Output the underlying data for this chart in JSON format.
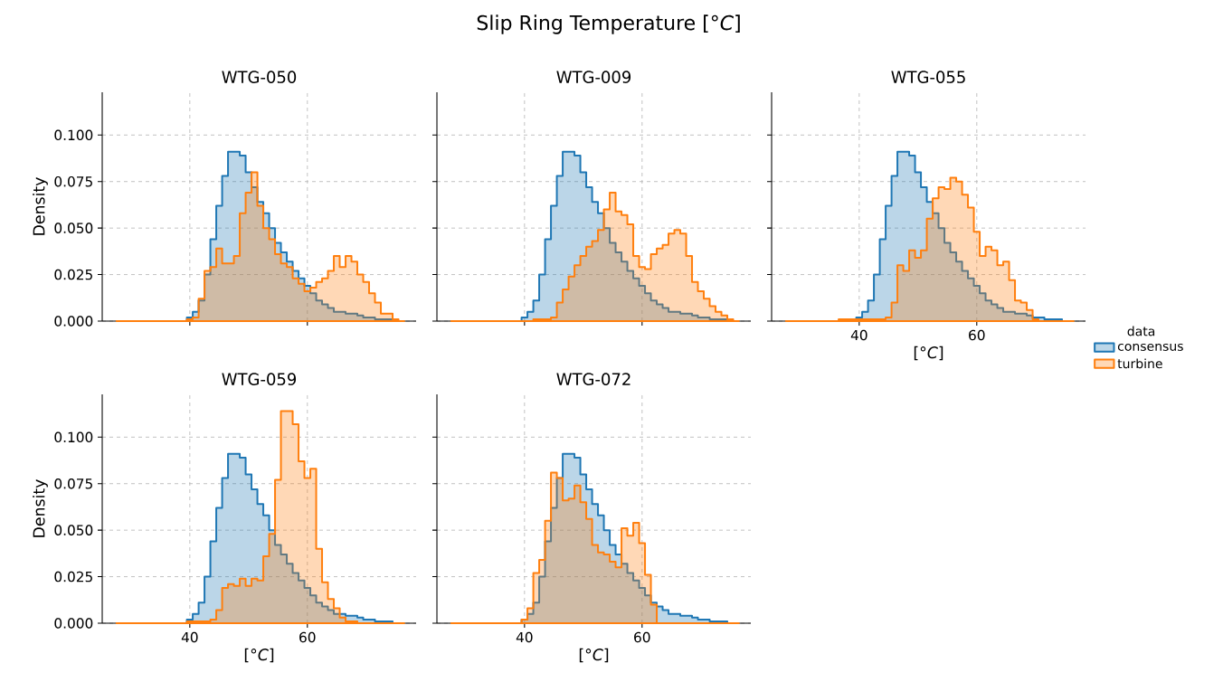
{
  "chart_data": [
    {
      "type": "histogram",
      "title": "WTG-050",
      "ylabel": "Density",
      "xlim": [
        25.1,
        78.5
      ],
      "ylim": [
        0,
        0.123
      ],
      "xticks": [
        40,
        60
      ],
      "yticks": [
        {
          "value": 0,
          "label": "0.000"
        },
        {
          "value": 0.025,
          "label": "0.025"
        },
        {
          "value": 0.05,
          "label": "0.050"
        },
        {
          "value": 0.075,
          "label": "0.075"
        },
        {
          "value": 0.1,
          "label": "0.100"
        }
      ],
      "grid": true,
      "tick_labels": "y",
      "bins": [
        27.5,
        28.5,
        29.5,
        30.5,
        31.5,
        32.5,
        33.5,
        34.5,
        35.5,
        36.5,
        37.5,
        38.5,
        39.5,
        40.5,
        41.5,
        42.5,
        43.5,
        44.5,
        45.5,
        46.5,
        47.5,
        48.5,
        49.5,
        50.5,
        51.5,
        52.5,
        53.5,
        54.5,
        55.5,
        56.5,
        57.5,
        58.5,
        59.5,
        60.5,
        61.5,
        62.5,
        63.5,
        64.5,
        65.5,
        66.5,
        67.5,
        68.5,
        69.5,
        70.5,
        71.5,
        72.5,
        73.5,
        74.5,
        75.5,
        76.5
      ],
      "series": [
        {
          "color": "#1f77b4",
          "values": [
            0,
            0,
            0,
            0,
            0,
            0,
            0,
            0,
            0,
            0,
            0,
            0,
            0.002,
            0.005,
            0.011,
            0.025,
            0.044,
            0.062,
            0.078,
            0.091,
            0.091,
            0.089,
            0.08,
            0.072,
            0.064,
            0.058,
            0.05,
            0.042,
            0.037,
            0.032,
            0.027,
            0.023,
            0.019,
            0.015,
            0.011,
            0.009,
            0.007,
            0.005,
            0.005,
            0.004,
            0.004,
            0.003,
            0.002,
            0.002,
            0.001,
            0.001,
            0.001,
            0,
            0
          ]
        },
        {
          "color": "#ff7f0e",
          "values": [
            0,
            0,
            0,
            0,
            0,
            0,
            0,
            0,
            0,
            0,
            0,
            0,
            0.001,
            0.002,
            0.012,
            0.027,
            0.029,
            0.039,
            0.031,
            0.031,
            0.035,
            0.058,
            0.069,
            0.08,
            0.062,
            0.05,
            0.044,
            0.036,
            0.031,
            0.029,
            0.023,
            0.02,
            0.016,
            0.018,
            0.021,
            0.023,
            0.027,
            0.035,
            0.029,
            0.035,
            0.032,
            0.025,
            0.021,
            0.015,
            0.01,
            0.004,
            0.004,
            0.001,
            0
          ]
        }
      ]
    },
    {
      "type": "histogram",
      "title": "WTG-009",
      "xlim": [
        25.1,
        78.5
      ],
      "ylim": [
        0,
        0.123
      ],
      "xticks": [
        40,
        60
      ],
      "yticks": [
        {
          "value": 0,
          "label": null
        },
        {
          "value": 0.025,
          "label": null
        },
        {
          "value": 0.05,
          "label": null
        },
        {
          "value": 0.075,
          "label": null
        },
        {
          "value": 0.1,
          "label": null
        }
      ],
      "grid": true,
      "tick_labels": false,
      "annotations": [
        "Slip Ring Temperature [°*C*]"
      ],
      "bins": [
        27.5,
        28.5,
        29.5,
        30.5,
        31.5,
        32.5,
        33.5,
        34.5,
        35.5,
        36.5,
        37.5,
        38.5,
        39.5,
        40.5,
        41.5,
        42.5,
        43.5,
        44.5,
        45.5,
        46.5,
        47.5,
        48.5,
        49.5,
        50.5,
        51.5,
        52.5,
        53.5,
        54.5,
        55.5,
        56.5,
        57.5,
        58.5,
        59.5,
        60.5,
        61.5,
        62.5,
        63.5,
        64.5,
        65.5,
        66.5,
        67.5,
        68.5,
        69.5,
        70.5,
        71.5,
        72.5,
        73.5,
        74.5,
        75.5,
        76.5
      ],
      "series": [
        {
          "color": "#1f77b4",
          "values": [
            0,
            0,
            0,
            0,
            0,
            0,
            0,
            0,
            0,
            0,
            0,
            0,
            0.002,
            0.005,
            0.011,
            0.025,
            0.044,
            0.062,
            0.078,
            0.091,
            0.091,
            0.089,
            0.08,
            0.072,
            0.064,
            0.058,
            0.05,
            0.042,
            0.037,
            0.032,
            0.027,
            0.023,
            0.019,
            0.015,
            0.011,
            0.009,
            0.007,
            0.005,
            0.005,
            0.004,
            0.004,
            0.003,
            0.002,
            0.002,
            0.001,
            0.001,
            0.001,
            0,
            0
          ]
        },
        {
          "color": "#ff7f0e",
          "values": [
            0,
            0,
            0,
            0,
            0,
            0,
            0,
            0,
            0,
            0,
            0,
            0,
            0,
            0,
            0.001,
            0.001,
            0.001,
            0.002,
            0.01,
            0.017,
            0.024,
            0.03,
            0.035,
            0.04,
            0.043,
            0.049,
            0.06,
            0.069,
            0.059,
            0.057,
            0.052,
            0.035,
            0.029,
            0.028,
            0.036,
            0.039,
            0.041,
            0.047,
            0.049,
            0.047,
            0.035,
            0.021,
            0.016,
            0.012,
            0.008,
            0.005,
            0.003,
            0.001,
            0
          ]
        }
      ]
    },
    {
      "type": "histogram",
      "title": "WTG-055",
      "xlabel": "[°*C*]",
      "xlim": [
        25.1,
        78.5
      ],
      "ylim": [
        0,
        0.123
      ],
      "xticks": [
        40,
        60
      ],
      "yticks": [
        {
          "value": 0,
          "label": null
        },
        {
          "value": 0.025,
          "label": null
        },
        {
          "value": 0.05,
          "label": null
        },
        {
          "value": 0.075,
          "label": null
        },
        {
          "value": 0.1,
          "label": null
        }
      ],
      "grid": true,
      "tick_labels": "x",
      "legend": "right",
      "legend_title": "data",
      "bins": [
        27.5,
        28.5,
        29.5,
        30.5,
        31.5,
        32.5,
        33.5,
        34.5,
        35.5,
        36.5,
        37.5,
        38.5,
        39.5,
        40.5,
        41.5,
        42.5,
        43.5,
        44.5,
        45.5,
        46.5,
        47.5,
        48.5,
        49.5,
        50.5,
        51.5,
        52.5,
        53.5,
        54.5,
        55.5,
        56.5,
        57.5,
        58.5,
        59.5,
        60.5,
        61.5,
        62.5,
        63.5,
        64.5,
        65.5,
        66.5,
        67.5,
        68.5,
        69.5,
        70.5,
        71.5,
        72.5,
        73.5,
        74.5,
        75.5,
        76.5
      ],
      "series": [
        {
          "name": "consensus",
          "color": "#1f77b4",
          "values": [
            0,
            0,
            0,
            0,
            0,
            0,
            0,
            0,
            0,
            0,
            0,
            0,
            0.002,
            0.005,
            0.011,
            0.025,
            0.044,
            0.062,
            0.078,
            0.091,
            0.091,
            0.089,
            0.08,
            0.072,
            0.064,
            0.058,
            0.05,
            0.042,
            0.037,
            0.032,
            0.027,
            0.023,
            0.019,
            0.015,
            0.011,
            0.009,
            0.007,
            0.005,
            0.005,
            0.004,
            0.004,
            0.003,
            0.002,
            0.002,
            0.001,
            0.001,
            0.001,
            0,
            0
          ]
        },
        {
          "name": "turbine",
          "color": "#ff7f0e",
          "values": [
            0,
            0,
            0,
            0,
            0,
            0,
            0,
            0,
            0,
            0.001,
            0.001,
            0.001,
            0.001,
            0.001,
            0.001,
            0.001,
            0.001,
            0.002,
            0.01,
            0.03,
            0.027,
            0.038,
            0.034,
            0.038,
            0.055,
            0.066,
            0.072,
            0.071,
            0.077,
            0.075,
            0.068,
            0.061,
            0.048,
            0.035,
            0.04,
            0.038,
            0.03,
            0.032,
            0.022,
            0.011,
            0.01,
            0.006,
            0.001,
            0,
            0,
            0,
            0,
            0,
            0
          ]
        }
      ]
    },
    {
      "type": "histogram",
      "title": "WTG-059",
      "xlabel": "[°*C*]",
      "ylabel": "Density",
      "xlim": [
        25.1,
        78.5
      ],
      "ylim": [
        0,
        0.123
      ],
      "xticks": [
        40,
        60
      ],
      "yticks": [
        {
          "value": 0,
          "label": "0.000"
        },
        {
          "value": 0.025,
          "label": "0.025"
        },
        {
          "value": 0.05,
          "label": "0.050"
        },
        {
          "value": 0.075,
          "label": "0.075"
        },
        {
          "value": 0.1,
          "label": "0.100"
        }
      ],
      "grid": true,
      "bins": [
        27.5,
        28.5,
        29.5,
        30.5,
        31.5,
        32.5,
        33.5,
        34.5,
        35.5,
        36.5,
        37.5,
        38.5,
        39.5,
        40.5,
        41.5,
        42.5,
        43.5,
        44.5,
        45.5,
        46.5,
        47.5,
        48.5,
        49.5,
        50.5,
        51.5,
        52.5,
        53.5,
        54.5,
        55.5,
        56.5,
        57.5,
        58.5,
        59.5,
        60.5,
        61.5,
        62.5,
        63.5,
        64.5,
        65.5,
        66.5,
        67.5,
        68.5,
        69.5,
        70.5,
        71.5,
        72.5,
        73.5,
        74.5,
        75.5,
        76.5
      ],
      "series": [
        {
          "color": "#1f77b4",
          "values": [
            0,
            0,
            0,
            0,
            0,
            0,
            0,
            0,
            0,
            0,
            0,
            0,
            0.002,
            0.005,
            0.011,
            0.025,
            0.044,
            0.062,
            0.078,
            0.091,
            0.091,
            0.089,
            0.08,
            0.072,
            0.064,
            0.058,
            0.05,
            0.042,
            0.037,
            0.032,
            0.027,
            0.023,
            0.019,
            0.015,
            0.011,
            0.009,
            0.007,
            0.005,
            0.005,
            0.004,
            0.004,
            0.003,
            0.002,
            0.002,
            0.001,
            0.001,
            0.001,
            0,
            0
          ]
        },
        {
          "color": "#ff7f0e",
          "values": [
            0,
            0,
            0,
            0,
            0,
            0,
            0,
            0,
            0,
            0,
            0,
            0,
            0.001,
            0.001,
            0.001,
            0.001,
            0.002,
            0.007,
            0.019,
            0.021,
            0.02,
            0.024,
            0.02,
            0.024,
            0.023,
            0.036,
            0.048,
            0.077,
            0.114,
            0.114,
            0.107,
            0.087,
            0.078,
            0.083,
            0.04,
            0.022,
            0.013,
            0.008,
            0.003,
            0.001,
            0.001,
            0,
            0,
            0,
            0,
            0,
            0,
            0,
            0
          ]
        }
      ]
    },
    {
      "type": "histogram",
      "title": "WTG-072",
      "xlabel": "[°*C*]",
      "xlim": [
        25.1,
        78.5
      ],
      "ylim": [
        0,
        0.123
      ],
      "xticks": [
        40,
        60
      ],
      "yticks": [
        {
          "value": 0,
          "label": null
        },
        {
          "value": 0.025,
          "label": null
        },
        {
          "value": 0.05,
          "label": null
        },
        {
          "value": 0.075,
          "label": null
        },
        {
          "value": 0.1,
          "label": null
        }
      ],
      "grid": true,
      "tick_labels": "x",
      "bins": [
        27.5,
        28.5,
        29.5,
        30.5,
        31.5,
        32.5,
        33.5,
        34.5,
        35.5,
        36.5,
        37.5,
        38.5,
        39.5,
        40.5,
        41.5,
        42.5,
        43.5,
        44.5,
        45.5,
        46.5,
        47.5,
        48.5,
        49.5,
        50.5,
        51.5,
        52.5,
        53.5,
        54.5,
        55.5,
        56.5,
        57.5,
        58.5,
        59.5,
        60.5,
        61.5,
        62.5,
        63.5,
        64.5,
        65.5,
        66.5,
        67.5,
        68.5,
        69.5,
        70.5,
        71.5,
        72.5,
        73.5,
        74.5,
        75.5,
        76.5
      ],
      "series": [
        {
          "color": "#1f77b4",
          "values": [
            0,
            0,
            0,
            0,
            0,
            0,
            0,
            0,
            0,
            0,
            0,
            0,
            0.002,
            0.005,
            0.011,
            0.025,
            0.044,
            0.062,
            0.078,
            0.091,
            0.091,
            0.089,
            0.08,
            0.072,
            0.064,
            0.058,
            0.05,
            0.042,
            0.037,
            0.032,
            0.027,
            0.023,
            0.019,
            0.015,
            0.011,
            0.009,
            0.007,
            0.005,
            0.005,
            0.004,
            0.004,
            0.003,
            0.002,
            0.002,
            0.001,
            0.001,
            0.001,
            0,
            0
          ]
        },
        {
          "color": "#ff7f0e",
          "values": [
            0,
            0,
            0,
            0,
            0,
            0,
            0,
            0,
            0,
            0,
            0,
            0,
            0.002,
            0.008,
            0.027,
            0.034,
            0.055,
            0.081,
            0.078,
            0.066,
            0.067,
            0.074,
            0.065,
            0.056,
            0.042,
            0.038,
            0.037,
            0.033,
            0.03,
            0.051,
            0.047,
            0.054,
            0.043,
            0.026,
            0.01,
            0,
            0,
            0,
            0,
            0,
            0,
            0,
            0,
            0,
            0,
            0,
            0,
            0,
            0
          ]
        }
      ]
    }
  ]
}
